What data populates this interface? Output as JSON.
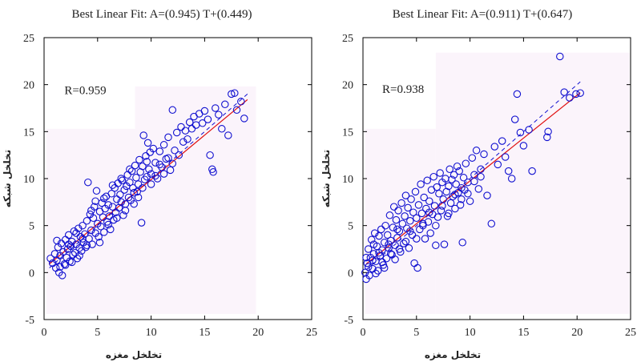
{
  "colors": {
    "marker": "#1010d0",
    "fit_line": "#e01010",
    "ideal_line": "#1010d0",
    "plot_bg": "#fbf4fb"
  },
  "chart_data": [
    {
      "type": "scatter",
      "title": "Best Linear Fit: A=(0.945) T+(0.449)",
      "xlabel": "تخلخل مغزه",
      "ylabel": "تخلخل شبکه",
      "xlim": [
        0,
        25
      ],
      "ylim": [
        -5,
        25
      ],
      "xticks": [
        0,
        5,
        10,
        15,
        20,
        25
      ],
      "yticks": [
        -5,
        0,
        5,
        10,
        15,
        20,
        25
      ],
      "r_label": "R=0.959",
      "fit": {
        "slope": 0.945,
        "intercept": 0.449,
        "x_range": [
          0.5,
          19
        ]
      },
      "ideal": {
        "x_range": [
          0.5,
          19
        ]
      },
      "marker_label": "data-point",
      "points": [
        [
          0.6,
          1.5
        ],
        [
          0.8,
          1.0
        ],
        [
          1.0,
          2.0
        ],
        [
          1.1,
          0.5
        ],
        [
          1.2,
          1.3
        ],
        [
          1.3,
          2.7
        ],
        [
          1.4,
          0.0
        ],
        [
          1.5,
          1.8
        ],
        [
          1.6,
          3.1
        ],
        [
          1.7,
          -0.3
        ],
        [
          1.8,
          2.2
        ],
        [
          1.9,
          0.9
        ],
        [
          2.0,
          3.5
        ],
        [
          2.1,
          1.6
        ],
        [
          2.2,
          2.5
        ],
        [
          2.3,
          4.0
        ],
        [
          2.4,
          1.2
        ],
        [
          2.5,
          2.8
        ],
        [
          2.6,
          3.3
        ],
        [
          2.7,
          1.9
        ],
        [
          2.8,
          4.4
        ],
        [
          2.9,
          2.1
        ],
        [
          3.0,
          3.0
        ],
        [
          3.1,
          1.5
        ],
        [
          3.2,
          4.7
        ],
        [
          3.3,
          2.6
        ],
        [
          3.4,
          3.8
        ],
        [
          3.5,
          2.3
        ],
        [
          3.6,
          5.0
        ],
        [
          3.7,
          3.2
        ],
        [
          3.8,
          4.1
        ],
        [
          3.9,
          2.7
        ],
        [
          4.0,
          5.5
        ],
        [
          4.1,
          9.6
        ],
        [
          4.2,
          3.6
        ],
        [
          4.3,
          6.2
        ],
        [
          4.4,
          4.5
        ],
        [
          4.5,
          3.0
        ],
        [
          4.6,
          5.8
        ],
        [
          4.7,
          7.0
        ],
        [
          4.8,
          4.2
        ],
        [
          4.9,
          8.7
        ],
        [
          5.0,
          5.2
        ],
        [
          5.1,
          3.8
        ],
        [
          5.2,
          6.5
        ],
        [
          5.3,
          4.9
        ],
        [
          5.4,
          7.4
        ],
        [
          5.5,
          5.9
        ],
        [
          5.6,
          4.3
        ],
        [
          5.7,
          6.8
        ],
        [
          5.8,
          8.1
        ],
        [
          5.9,
          5.4
        ],
        [
          6.0,
          7.2
        ],
        [
          6.1,
          6.0
        ],
        [
          6.2,
          4.6
        ],
        [
          6.3,
          8.4
        ],
        [
          6.4,
          7.0
        ],
        [
          6.5,
          5.6
        ],
        [
          6.6,
          9.0
        ],
        [
          6.7,
          6.4
        ],
        [
          6.8,
          7.8
        ],
        [
          6.9,
          9.5
        ],
        [
          7.0,
          6.9
        ],
        [
          7.1,
          8.3
        ],
        [
          7.2,
          7.5
        ],
        [
          7.3,
          9.8
        ],
        [
          7.4,
          6.1
        ],
        [
          7.5,
          8.8
        ],
        [
          7.6,
          7.3
        ],
        [
          7.7,
          9.2
        ],
        [
          7.8,
          10.4
        ],
        [
          7.9,
          8.0
        ],
        [
          8.0,
          9.6
        ],
        [
          8.1,
          7.7
        ],
        [
          8.2,
          10.8
        ],
        [
          8.3,
          9.0
        ],
        [
          8.4,
          8.5
        ],
        [
          8.5,
          11.4
        ],
        [
          8.6,
          10.1
        ],
        [
          8.7,
          8.6
        ],
        [
          8.8,
          9.4
        ],
        [
          8.9,
          12.0
        ],
        [
          9.0,
          10.7
        ],
        [
          9.1,
          5.3
        ],
        [
          9.2,
          11.3
        ],
        [
          9.3,
          14.6
        ],
        [
          9.4,
          9.9
        ],
        [
          9.5,
          12.4
        ],
        [
          9.6,
          10.2
        ],
        [
          9.7,
          13.8
        ],
        [
          9.8,
          11.0
        ],
        [
          9.9,
          12.8
        ],
        [
          10.0,
          10.5
        ],
        [
          10.2,
          13.2
        ],
        [
          10.4,
          11.7
        ],
        [
          10.6,
          10.0
        ],
        [
          10.8,
          12.9
        ],
        [
          11.0,
          11.2
        ],
        [
          11.2,
          13.6
        ],
        [
          11.4,
          12.1
        ],
        [
          11.6,
          14.4
        ],
        [
          11.8,
          10.9
        ],
        [
          12.0,
          17.3
        ],
        [
          12.2,
          13.0
        ],
        [
          12.4,
          14.9
        ],
        [
          12.6,
          12.5
        ],
        [
          12.8,
          15.5
        ],
        [
          13.0,
          13.9
        ],
        [
          13.2,
          15.1
        ],
        [
          13.4,
          14.2
        ],
        [
          13.6,
          16.0
        ],
        [
          13.8,
          15.3
        ],
        [
          14.0,
          16.6
        ],
        [
          14.2,
          15.7
        ],
        [
          14.5,
          16.9
        ],
        [
          14.8,
          15.9
        ],
        [
          15.0,
          17.2
        ],
        [
          15.3,
          16.3
        ],
        [
          15.5,
          12.5
        ],
        [
          15.7,
          11.0
        ],
        [
          15.8,
          10.7
        ],
        [
          16.0,
          17.5
        ],
        [
          16.3,
          16.8
        ],
        [
          16.6,
          15.3
        ],
        [
          16.9,
          17.9
        ],
        [
          17.2,
          14.6
        ],
        [
          17.5,
          19.0
        ],
        [
          17.8,
          19.1
        ],
        [
          18.0,
          17.3
        ],
        [
          18.4,
          18.2
        ],
        [
          18.7,
          16.4
        ],
        [
          1.2,
          3.4
        ],
        [
          1.5,
          0.6
        ],
        [
          2.0,
          0.8
        ],
        [
          2.3,
          3.0
        ],
        [
          2.6,
          1.1
        ],
        [
          3.0,
          4.2
        ],
        [
          3.3,
          1.8
        ],
        [
          3.6,
          3.6
        ],
        [
          4.0,
          2.9
        ],
        [
          4.4,
          6.6
        ],
        [
          4.8,
          7.6
        ],
        [
          5.2,
          3.2
        ],
        [
          5.6,
          7.9
        ],
        [
          6.0,
          5.1
        ],
        [
          6.4,
          9.3
        ],
        [
          6.8,
          5.8
        ],
        [
          7.2,
          10.0
        ],
        [
          7.6,
          6.6
        ],
        [
          8.0,
          11.0
        ],
        [
          8.4,
          7.3
        ],
        [
          8.8,
          8.0
        ],
        [
          9.2,
          9.0
        ],
        [
          9.6,
          11.8
        ],
        [
          10.0,
          9.4
        ],
        [
          10.4,
          10.3
        ],
        [
          10.8,
          11.5
        ],
        [
          11.2,
          10.5
        ],
        [
          11.6,
          12.2
        ],
        [
          12.0,
          11.6
        ]
      ]
    },
    {
      "type": "scatter",
      "title": "Best Linear Fit: A=(0.911) T+(0.647)",
      "xlabel": "تخلخل مغزه",
      "ylabel": "تخلخل شبکه",
      "xlim": [
        0,
        25
      ],
      "ylim": [
        -5,
        25
      ],
      "xticks": [
        0,
        5,
        10,
        15,
        20,
        25
      ],
      "yticks": [
        -5,
        0,
        5,
        10,
        15,
        20,
        25
      ],
      "r_label": "R=0.938",
      "fit": {
        "slope": 0.911,
        "intercept": 0.647,
        "x_range": [
          0.3,
          20.3
        ]
      },
      "ideal": {
        "x_range": [
          0.3,
          20.3
        ]
      },
      "marker_label": "data-point",
      "points": [
        [
          0.2,
          0.0
        ],
        [
          0.3,
          -0.7
        ],
        [
          0.4,
          1.0
        ],
        [
          0.5,
          2.5
        ],
        [
          0.6,
          -0.3
        ],
        [
          0.7,
          1.6
        ],
        [
          0.8,
          3.5
        ],
        [
          0.9,
          0.4
        ],
        [
          1.0,
          2.0
        ],
        [
          1.1,
          4.2
        ],
        [
          1.2,
          1.2
        ],
        [
          1.3,
          2.8
        ],
        [
          1.4,
          0.2
        ],
        [
          1.5,
          3.9
        ],
        [
          1.6,
          1.8
        ],
        [
          1.7,
          4.6
        ],
        [
          1.8,
          2.4
        ],
        [
          1.9,
          0.8
        ],
        [
          2.0,
          3.2
        ],
        [
          2.1,
          5.0
        ],
        [
          2.2,
          1.5
        ],
        [
          2.3,
          4.0
        ],
        [
          2.4,
          2.6
        ],
        [
          2.5,
          6.1
        ],
        [
          2.6,
          3.4
        ],
        [
          2.7,
          1.9
        ],
        [
          2.8,
          4.8
        ],
        [
          2.9,
          7.0
        ],
        [
          3.0,
          2.9
        ],
        [
          3.1,
          5.6
        ],
        [
          3.2,
          3.7
        ],
        [
          3.3,
          6.6
        ],
        [
          3.4,
          4.4
        ],
        [
          3.5,
          2.2
        ],
        [
          3.6,
          7.4
        ],
        [
          3.7,
          5.2
        ],
        [
          3.8,
          3.1
        ],
        [
          3.9,
          6.0
        ],
        [
          4.0,
          8.2
        ],
        [
          4.1,
          4.7
        ],
        [
          4.2,
          6.9
        ],
        [
          4.3,
          2.6
        ],
        [
          4.4,
          5.5
        ],
        [
          4.5,
          7.8
        ],
        [
          4.6,
          4.0
        ],
        [
          4.7,
          6.4
        ],
        [
          4.8,
          1.0
        ],
        [
          4.9,
          8.6
        ],
        [
          5.0,
          5.8
        ],
        [
          5.1,
          0.5
        ],
        [
          5.2,
          7.2
        ],
        [
          5.3,
          4.6
        ],
        [
          5.4,
          9.4
        ],
        [
          5.5,
          6.3
        ],
        [
          5.6,
          5.0
        ],
        [
          5.7,
          8.0
        ],
        [
          5.8,
          3.6
        ],
        [
          5.9,
          6.8
        ],
        [
          6.0,
          9.8
        ],
        [
          6.1,
          5.4
        ],
        [
          6.2,
          7.6
        ],
        [
          6.3,
          4.2
        ],
        [
          6.4,
          8.8
        ],
        [
          6.5,
          6.2
        ],
        [
          6.6,
          10.2
        ],
        [
          6.7,
          7.1
        ],
        [
          6.8,
          2.9
        ],
        [
          6.9,
          9.1
        ],
        [
          7.0,
          5.9
        ],
        [
          7.1,
          8.4
        ],
        [
          7.2,
          10.6
        ],
        [
          7.3,
          6.6
        ],
        [
          7.4,
          9.6
        ],
        [
          7.5,
          7.8
        ],
        [
          7.6,
          3.0
        ],
        [
          7.7,
          10.0
        ],
        [
          7.8,
          8.6
        ],
        [
          7.9,
          6.0
        ],
        [
          8.0,
          9.2
        ],
        [
          8.1,
          11.0
        ],
        [
          8.2,
          7.4
        ],
        [
          8.3,
          9.9
        ],
        [
          8.4,
          8.1
        ],
        [
          8.5,
          10.4
        ],
        [
          8.6,
          6.8
        ],
        [
          8.7,
          9.4
        ],
        [
          8.8,
          11.3
        ],
        [
          8.9,
          8.5
        ],
        [
          9.0,
          10.8
        ],
        [
          9.1,
          7.2
        ],
        [
          9.2,
          9.0
        ],
        [
          9.3,
          3.2
        ],
        [
          9.4,
          10.1
        ],
        [
          9.5,
          8.8
        ],
        [
          9.6,
          11.6
        ],
        [
          9.8,
          9.6
        ],
        [
          10.0,
          7.6
        ],
        [
          10.2,
          12.2
        ],
        [
          10.4,
          10.4
        ],
        [
          10.6,
          13.0
        ],
        [
          10.8,
          8.9
        ],
        [
          11.0,
          11.0
        ],
        [
          11.3,
          12.6
        ],
        [
          11.6,
          8.2
        ],
        [
          12.0,
          5.2
        ],
        [
          12.3,
          13.4
        ],
        [
          12.6,
          11.5
        ],
        [
          13.0,
          14.0
        ],
        [
          13.3,
          12.3
        ],
        [
          13.6,
          10.8
        ],
        [
          13.9,
          10.0
        ],
        [
          14.2,
          16.3
        ],
        [
          14.4,
          19.0
        ],
        [
          14.7,
          14.9
        ],
        [
          15.0,
          13.5
        ],
        [
          15.5,
          15.2
        ],
        [
          15.8,
          10.8
        ],
        [
          17.2,
          14.4
        ],
        [
          17.3,
          15.0
        ],
        [
          18.4,
          23.0
        ],
        [
          18.8,
          19.2
        ],
        [
          19.3,
          18.6
        ],
        [
          19.9,
          19.0
        ],
        [
          20.3,
          19.1
        ],
        [
          0.5,
          0.6
        ],
        [
          0.9,
          1.3
        ],
        [
          1.2,
          -0.1
        ],
        [
          1.5,
          2.1
        ],
        [
          2.0,
          0.5
        ],
        [
          2.4,
          3.0
        ],
        [
          3.0,
          1.4
        ],
        [
          3.4,
          2.5
        ],
        [
          4.0,
          3.3
        ],
        [
          4.4,
          4.4
        ],
        [
          5.0,
          3.6
        ],
        [
          5.6,
          5.2
        ],
        [
          6.2,
          6.4
        ],
        [
          6.8,
          5.0
        ],
        [
          7.4,
          7.1
        ],
        [
          8.0,
          6.3
        ],
        [
          8.6,
          8.3
        ],
        [
          9.2,
          7.8
        ],
        [
          9.8,
          8.4
        ],
        [
          10.4,
          9.7
        ],
        [
          11.0,
          10.2
        ],
        [
          0.3,
          1.6
        ],
        [
          1.0,
          3.0
        ],
        [
          1.8,
          1.1
        ],
        [
          2.6,
          2.0
        ],
        [
          3.2,
          4.6
        ]
      ]
    }
  ]
}
